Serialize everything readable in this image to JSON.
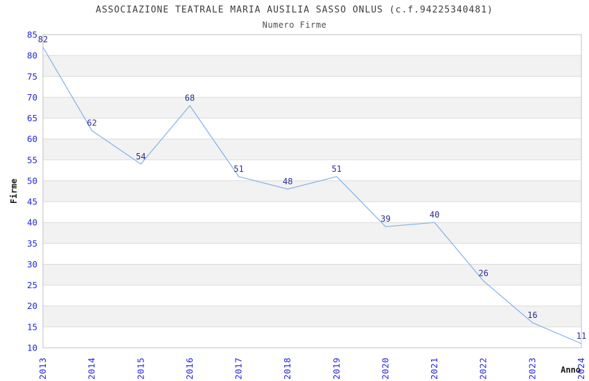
{
  "page": {
    "title": "ASSOCIAZIONE TEATRALE MARIA AUSILIA SASSO ONLUS (c.f.94225340481)",
    "subtitle": "Numero Firme"
  },
  "chart_data": {
    "type": "line",
    "title": "ASSOCIAZIONE TEATRALE MARIA AUSILIA SASSO ONLUS (c.f.94225340481)",
    "subtitle": "Numero Firme",
    "xlabel": "Anno",
    "ylabel": "Firme",
    "categories": [
      "2013",
      "2014",
      "2015",
      "2016",
      "2017",
      "2018",
      "2019",
      "2020",
      "2021",
      "2022",
      "2023",
      "2024"
    ],
    "values": [
      82,
      62,
      54,
      68,
      51,
      48,
      51,
      39,
      40,
      26,
      16,
      11
    ],
    "ylim": [
      10,
      85
    ],
    "ytick_step": 5,
    "grid": true,
    "alternating_bands": true,
    "point_labels_visible": true,
    "legend_position": "none",
    "colors": {
      "line": "#7fb2e8",
      "tick_label": "#2525dd",
      "point_label": "#2b2b8f",
      "band": "#f2f2f2",
      "gridline": "#dcdcdc",
      "border": "#c0c0c0",
      "axis_label": "#1a1a1a",
      "background": "#ffffff"
    }
  }
}
